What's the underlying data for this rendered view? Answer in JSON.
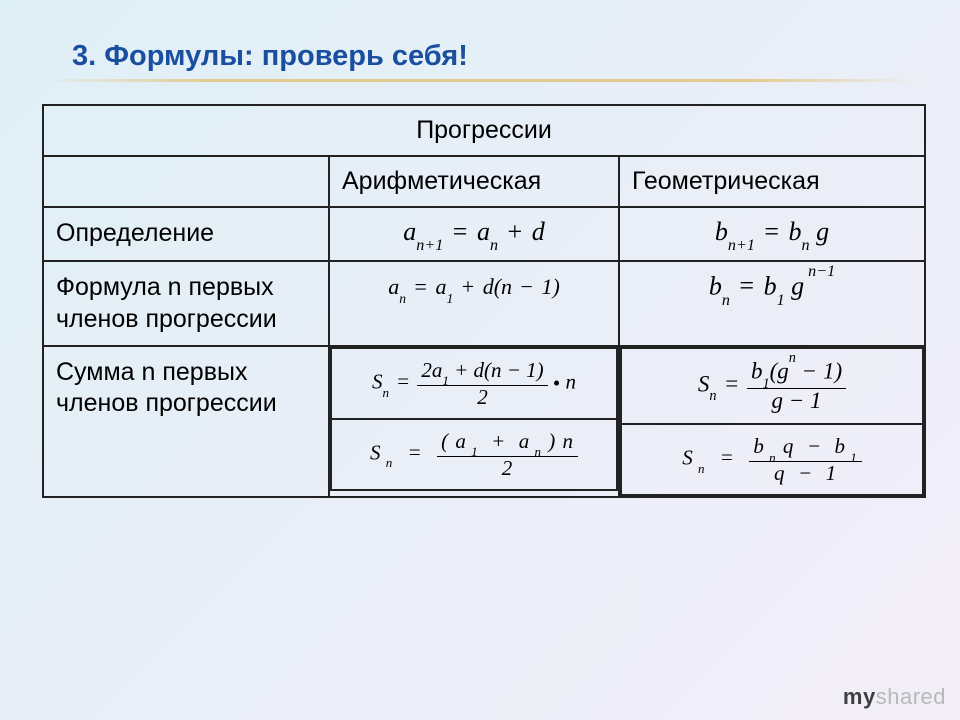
{
  "colors": {
    "bg_start": "#dfeff6",
    "bg_end": "#f3eef8",
    "title": "#1a4fa0",
    "text": "#000000",
    "border": "#222222",
    "rule": "#e1c378",
    "wm_my": "#3f3f3f",
    "wm_shared": "#b9b9b9"
  },
  "title": "3. Формулы: проверь себя!",
  "table": {
    "header_main": "Прогрессии",
    "header_cols": [
      "Арифметическая",
      "Геометрическая"
    ],
    "rows": [
      {
        "label": "Определение",
        "arith_html": "<i>a</i><sub>n+1</sub> <span class='op'>=</span> <i>a</i><sub>n</sub> <span class='op'>+</span> <i>d</i>",
        "geom_html": "<i>b</i><sub>n+1</sub> <span class='op'>=</span> <i>b</i><sub>n</sub> <i>g</i>"
      },
      {
        "label": "Формула n первых членов прогрессии",
        "arith_html": "<i>a</i><sub>n</sub> <span class='op'>=</span> <i>a</i><sub>1</sub> <span class='op'>+</span> <i>d</i>(<i>n</i> <span class='op'>&minus;</span> 1)",
        "geom_html": "<i>b</i><sub>n</sub> <span class='op'>=</span> <i>b</i><sub>1</sub> <i>g</i><sup>&nbsp;n&minus;1</sup>"
      },
      {
        "label": "Сумма  n первых членов прогрессии",
        "arith_sum": [
          "<i>S</i><sub>n</sub> <span class='op'>=</span> <span class='frac'><span class='num'>2<i>a</i><sub>1</sub> + <i>d</i>(<i>n</i> &minus; 1)</span><span class='den'>2</span></span> <span style='font-style:normal;position:relative;top:2px;'>&bull;</span> <i>n</i>",
          "<i>S</i><sub>&nbsp;n</sub>&nbsp;&nbsp;<span class='op'>=</span>&nbsp;&nbsp;<span class='frac'><span class='num'>( <i>a</i><sub>&nbsp;1</sub> &nbsp;+&nbsp; <i>a</i><sub>&nbsp;n</sub> ) <i>n</i></span><span class='den'>2</span></span>"
        ],
        "geom_sum": [
          "<i>S</i><sub>n</sub> <span class='op'>=</span> <span class='frac'><span class='num'><i>b</i><sub>1</sub>(<i>g</i><sup>n</sup> &minus; 1)</span><span class='den'><i>g</i> &minus; 1</span></span>",
          "<i>S</i><sub>&nbsp;n</sub>&nbsp;&nbsp;<span class='op'>=</span>&nbsp;&nbsp;<span class='frac'><span class='num'><i>b</i><sub>&nbsp;n</sub>&nbsp;<i>q</i>&nbsp;&nbsp;&minus;&nbsp;&nbsp;<i>b</i><sub>&nbsp;1</sub></span><span class='den'><i>q</i>&nbsp;&nbsp;&minus;&nbsp;&nbsp;1</span></span>"
        ]
      }
    ]
  },
  "watermark": {
    "my": "my",
    "shared": "shared"
  }
}
